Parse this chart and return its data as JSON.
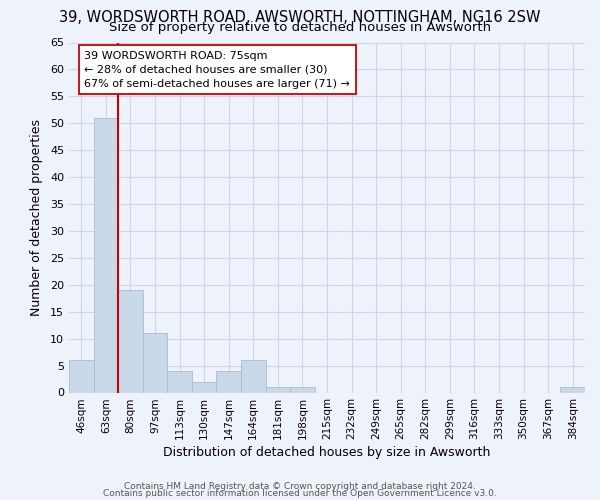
{
  "title": "39, WORDSWORTH ROAD, AWSWORTH, NOTTINGHAM, NG16 2SW",
  "subtitle": "Size of property relative to detached houses in Awsworth",
  "xlabel": "Distribution of detached houses by size in Awsworth",
  "ylabel": "Number of detached properties",
  "categories": [
    "46sqm",
    "63sqm",
    "80sqm",
    "97sqm",
    "113sqm",
    "130sqm",
    "147sqm",
    "164sqm",
    "181sqm",
    "198sqm",
    "215sqm",
    "232sqm",
    "249sqm",
    "265sqm",
    "282sqm",
    "299sqm",
    "316sqm",
    "333sqm",
    "350sqm",
    "367sqm",
    "384sqm"
  ],
  "values": [
    6,
    51,
    19,
    11,
    4,
    2,
    4,
    6,
    1,
    1,
    0,
    0,
    0,
    0,
    0,
    0,
    0,
    0,
    0,
    0,
    1
  ],
  "bar_color": "#c9d9ea",
  "bar_edge_color": "#a8bece",
  "vline_color": "#cc0000",
  "annotation_text": "39 WORDSWORTH ROAD: 75sqm\n← 28% of detached houses are smaller (30)\n67% of semi-detached houses are larger (71) →",
  "annotation_box_color": "#ffffff",
  "annotation_box_edge": "#cc0000",
  "ylim": [
    0,
    65
  ],
  "yticks": [
    0,
    5,
    10,
    15,
    20,
    25,
    30,
    35,
    40,
    45,
    50,
    55,
    60,
    65
  ],
  "grid_color": "#ccd6e8",
  "background_color": "#eef2fa",
  "plot_bg_color": "#eef2fa",
  "footer_line1": "Contains HM Land Registry data © Crown copyright and database right 2024.",
  "footer_line2": "Contains public sector information licensed under the Open Government Licence v3.0.",
  "title_fontsize": 10.5,
  "subtitle_fontsize": 9.5,
  "axis_label_fontsize": 9,
  "tick_fontsize": 7.5,
  "annotation_fontsize": 8,
  "footer_fontsize": 6.5
}
